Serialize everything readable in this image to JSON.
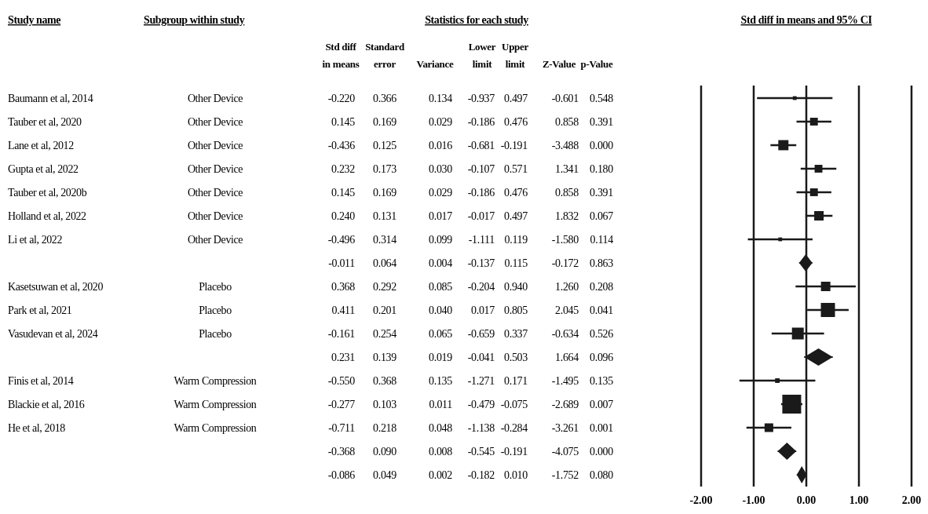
{
  "chart_data": [
    {
      "type": "other",
      "title": "Statistics for each study",
      "ylabel": "Study name",
      "y2label": "Subgroup within study",
      "categories": [
        "Std diff in means",
        "Standard error",
        "Variance",
        "Lower limit",
        "Upper limit",
        "Z-Value",
        "p-Value"
      ],
      "y_categories": [
        "Baumann et al, 2014",
        "Tauber et al, 2020",
        "Lane et al, 2012",
        "Gupta et al, 2022",
        "Tauber et al, 2020b",
        "Holland et al, 2022",
        "Li et al, 2022",
        null,
        "Kasetsuwan et al, 2020",
        "Park et al, 2021",
        "Vasudevan et al, 2024",
        null,
        "Finis et al, 2014",
        "Blackie et al, 2016",
        "He et al, 2018",
        null,
        null
      ],
      "y2_categories": [
        "Other Device",
        "Other Device",
        "Other Device",
        "Other Device",
        "Other Device",
        "Other Device",
        "Other Device",
        null,
        "Placebo",
        "Placebo",
        "Placebo",
        null,
        "Warm Compression",
        "Warm Compression",
        "Warm Compression",
        null,
        null
      ],
      "cell_labels": [
        [
          "-0.220",
          "0.366",
          "0.134",
          "-0.937",
          "0.497",
          "-0.601",
          "0.548"
        ],
        [
          "0.145",
          "0.169",
          "0.029",
          "-0.186",
          "0.476",
          "0.858",
          "0.391"
        ],
        [
          "-0.436",
          "0.125",
          "0.016",
          "-0.681",
          "-0.191",
          "-3.488",
          "0.000"
        ],
        [
          "0.232",
          "0.173",
          "0.030",
          "-0.107",
          "0.571",
          "1.341",
          "0.180"
        ],
        [
          "0.145",
          "0.169",
          "0.029",
          "-0.186",
          "0.476",
          "0.858",
          "0.391"
        ],
        [
          "0.240",
          "0.131",
          "0.017",
          "-0.017",
          "0.497",
          "1.832",
          "0.067"
        ],
        [
          "-0.496",
          "0.314",
          "0.099",
          "-1.111",
          "0.119",
          "-1.580",
          "0.114"
        ],
        [
          "-0.011",
          "0.064",
          "0.004",
          "-0.137",
          "0.115",
          "-0.172",
          "0.863"
        ],
        [
          "0.368",
          "0.292",
          "0.085",
          "-0.204",
          "0.940",
          "1.260",
          "0.208"
        ],
        [
          "0.411",
          "0.201",
          "0.040",
          "0.017",
          "0.805",
          "2.045",
          "0.041"
        ],
        [
          "-0.161",
          "0.254",
          "0.065",
          "-0.659",
          "0.337",
          "-0.634",
          "0.526"
        ],
        [
          "0.231",
          "0.139",
          "0.019",
          "-0.041",
          "0.503",
          "1.664",
          "0.096"
        ],
        [
          "-0.550",
          "0.368",
          "0.135",
          "-1.271",
          "0.171",
          "-1.495",
          "0.135"
        ],
        [
          "-0.277",
          "0.103",
          "0.011",
          "-0.479",
          "-0.075",
          "-2.689",
          "0.007"
        ],
        [
          "-0.711",
          "0.218",
          "0.048",
          "-1.138",
          "-0.284",
          "-3.261",
          "0.001"
        ],
        [
          "-0.368",
          "0.090",
          "0.008",
          "-0.545",
          "-0.191",
          "-4.075",
          "0.000"
        ],
        [
          "-0.086",
          "0.049",
          "0.002",
          "-0.182",
          "0.010",
          "-1.752",
          "0.080"
        ]
      ]
    },
    {
      "type": "scatter",
      "title": "Std diff in means and 95% CI",
      "orientation": "horizontal",
      "categories": [
        null,
        null,
        null,
        null,
        null,
        null,
        null,
        null,
        null,
        null,
        null,
        null,
        null,
        null,
        null,
        null,
        null
      ],
      "series": [
        {
          "type": "bubble",
          "marker": "square",
          "color": "#1a1a1a",
          "values": [
            -0.22,
            0.145,
            -0.436,
            0.232,
            0.145,
            0.24,
            -0.496,
            null,
            0.368,
            0.411,
            -0.161,
            null,
            -0.55,
            -0.277,
            -0.711,
            null,
            null
          ],
          "sizes": [
            0.04,
            0.17,
            0.29,
            0.17,
            0.17,
            0.25,
            0.04,
            null,
            0.25,
            0.56,
            0.39,
            null,
            0.06,
            1,
            0.21,
            null,
            null
          ],
          "errors": [
            [
              -0.937,
              0.497
            ],
            [
              -0.186,
              0.476
            ],
            [
              -0.681,
              -0.191
            ],
            [
              -0.107,
              0.571
            ],
            [
              -0.186,
              0.476
            ],
            [
              -0.017,
              0.497
            ],
            [
              -1.111,
              0.119
            ],
            null,
            [
              -0.204,
              0.94
            ],
            [
              0.017,
              0.805
            ],
            [
              -0.659,
              0.337
            ],
            null,
            [
              -1.271,
              0.171
            ],
            [
              -0.479,
              -0.075
            ],
            [
              -1.138,
              -0.284
            ],
            null,
            null
          ]
        },
        {
          "type": "scatter",
          "marker": "diamond",
          "color": "#1a1a1a",
          "values": [
            null,
            null,
            null,
            null,
            null,
            null,
            null,
            -0.011,
            null,
            null,
            null,
            0.231,
            null,
            null,
            null,
            -0.368,
            -0.086
          ],
          "errors": [
            null,
            null,
            null,
            null,
            null,
            null,
            null,
            [
              -0.137,
              0.115
            ],
            null,
            null,
            null,
            [
              -0.041,
              0.503
            ],
            null,
            null,
            null,
            [
              -0.545,
              -0.191
            ],
            [
              -0.182,
              0.01
            ]
          ]
        }
      ],
      "xlim": [
        -2,
        2
      ],
      "xticks": [
        {
          "value": -2,
          "label": "-2.00"
        },
        {
          "value": -1,
          "label": "-1.00"
        },
        {
          "value": 0,
          "label": "0.00"
        },
        {
          "value": 1,
          "label": "1.00"
        },
        {
          "value": 2,
          "label": "2.00"
        }
      ],
      "grid": "x"
    }
  ]
}
